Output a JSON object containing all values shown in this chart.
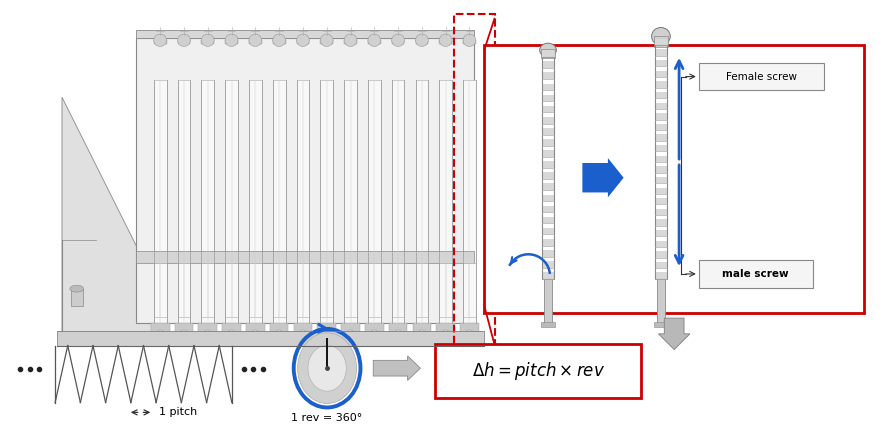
{
  "bg_color": "#ffffff",
  "formula_box_color": "#cc0000",
  "label_1pitch": "1 pitch",
  "label_1rev": "1 rev = 360°",
  "label_female_screw": "Female screw",
  "label_male_screw": "male screw",
  "arrow_blue": "#1a5fcc",
  "red_box_color": "#cc0000",
  "red_dashed_color": "#cc0000",
  "fig_w": 8.81,
  "fig_h": 4.24
}
